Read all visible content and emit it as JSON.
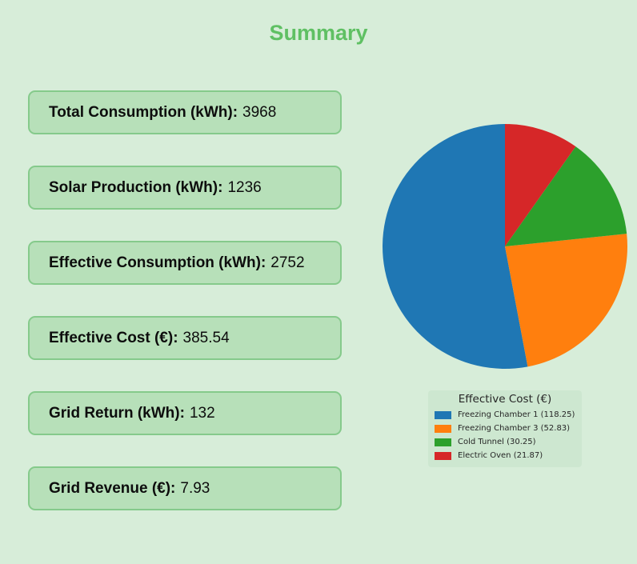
{
  "page": {
    "title": "Summary",
    "background_color": "#d7edd9",
    "title_color": "#5fc063"
  },
  "stats": [
    {
      "label": "Total Consumption (kWh):",
      "value": "3968"
    },
    {
      "label": "Solar Production (kWh):",
      "value": "1236"
    },
    {
      "label": "Effective Consumption (kWh):",
      "value": "2752"
    },
    {
      "label": "Effective Cost (€):",
      "value": "385.54"
    },
    {
      "label": "Grid Return (kWh):",
      "value": "132"
    },
    {
      "label": "Grid Revenue (€):",
      "value": "7.93"
    }
  ],
  "card_colors": {
    "fill": "#b7e0b9",
    "border": "#85ca8b"
  },
  "chart_data": {
    "type": "pie",
    "title": "Effective Cost (€)",
    "labels": [
      "Freezing Chamber 1",
      "Freezing Chamber 3",
      "Cold Tunnel",
      "Electric Oven"
    ],
    "values": [
      118.25,
      52.83,
      30.25,
      21.87
    ],
    "colors": [
      "#1f77b4",
      "#ff7f0e",
      "#2ca02c",
      "#d62728"
    ],
    "legend_labels": [
      "Freezing Chamber 1 (118.25)",
      "Freezing Chamber 3 (52.83)",
      "Cold Tunnel (30.25)",
      "Electric Oven (21.87)"
    ],
    "start_angle_deg": 90,
    "counterclock": true,
    "legend_position": "below-chart",
    "legend_background": "#cde7d0"
  }
}
